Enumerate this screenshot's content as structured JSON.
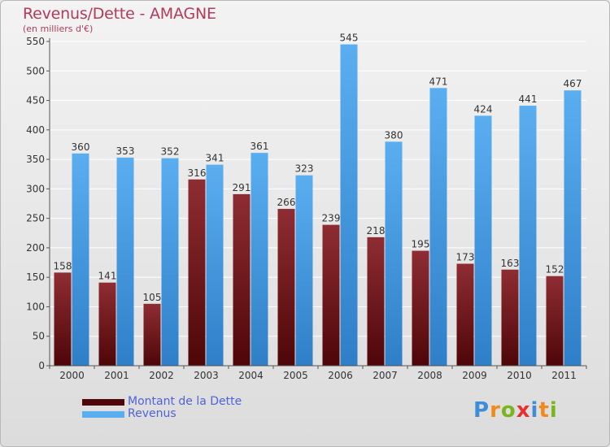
{
  "header": {
    "title": "Revenus/Dette - AMAGNE",
    "subtitle": "(en milliers d'€)"
  },
  "legend": {
    "dette": "Montant de la Dette",
    "revenus": "Revenus"
  },
  "logo": {
    "text": "Proxiti"
  },
  "colors": {
    "dette_top": "#8e2d33",
    "dette_bottom": "#4e0608",
    "revenus_top": "#5aaef0",
    "revenus_bottom": "#2f7fc8",
    "grid": "#ffffff",
    "axis_text": "#333333"
  },
  "chart_data": {
    "type": "bar",
    "title": "Revenus/Dette - AMAGNE",
    "ylabel": "(en milliers d'€)",
    "categories": [
      "2000",
      "2001",
      "2002",
      "2003",
      "2004",
      "2005",
      "2006",
      "2007",
      "2008",
      "2009",
      "2010",
      "2011"
    ],
    "series": [
      {
        "name": "Montant de la Dette",
        "values": [
          158,
          141,
          105,
          316,
          291,
          266,
          239,
          218,
          195,
          173,
          163,
          152
        ]
      },
      {
        "name": "Revenus",
        "values": [
          360,
          353,
          352,
          341,
          361,
          323,
          545,
          380,
          471,
          424,
          441,
          467
        ]
      }
    ],
    "ylim": [
      0,
      550
    ],
    "yticks": [
      0,
      50,
      100,
      150,
      200,
      250,
      300,
      350,
      400,
      450,
      500,
      550
    ],
    "grid": true,
    "legend_position": "bottom-left"
  }
}
